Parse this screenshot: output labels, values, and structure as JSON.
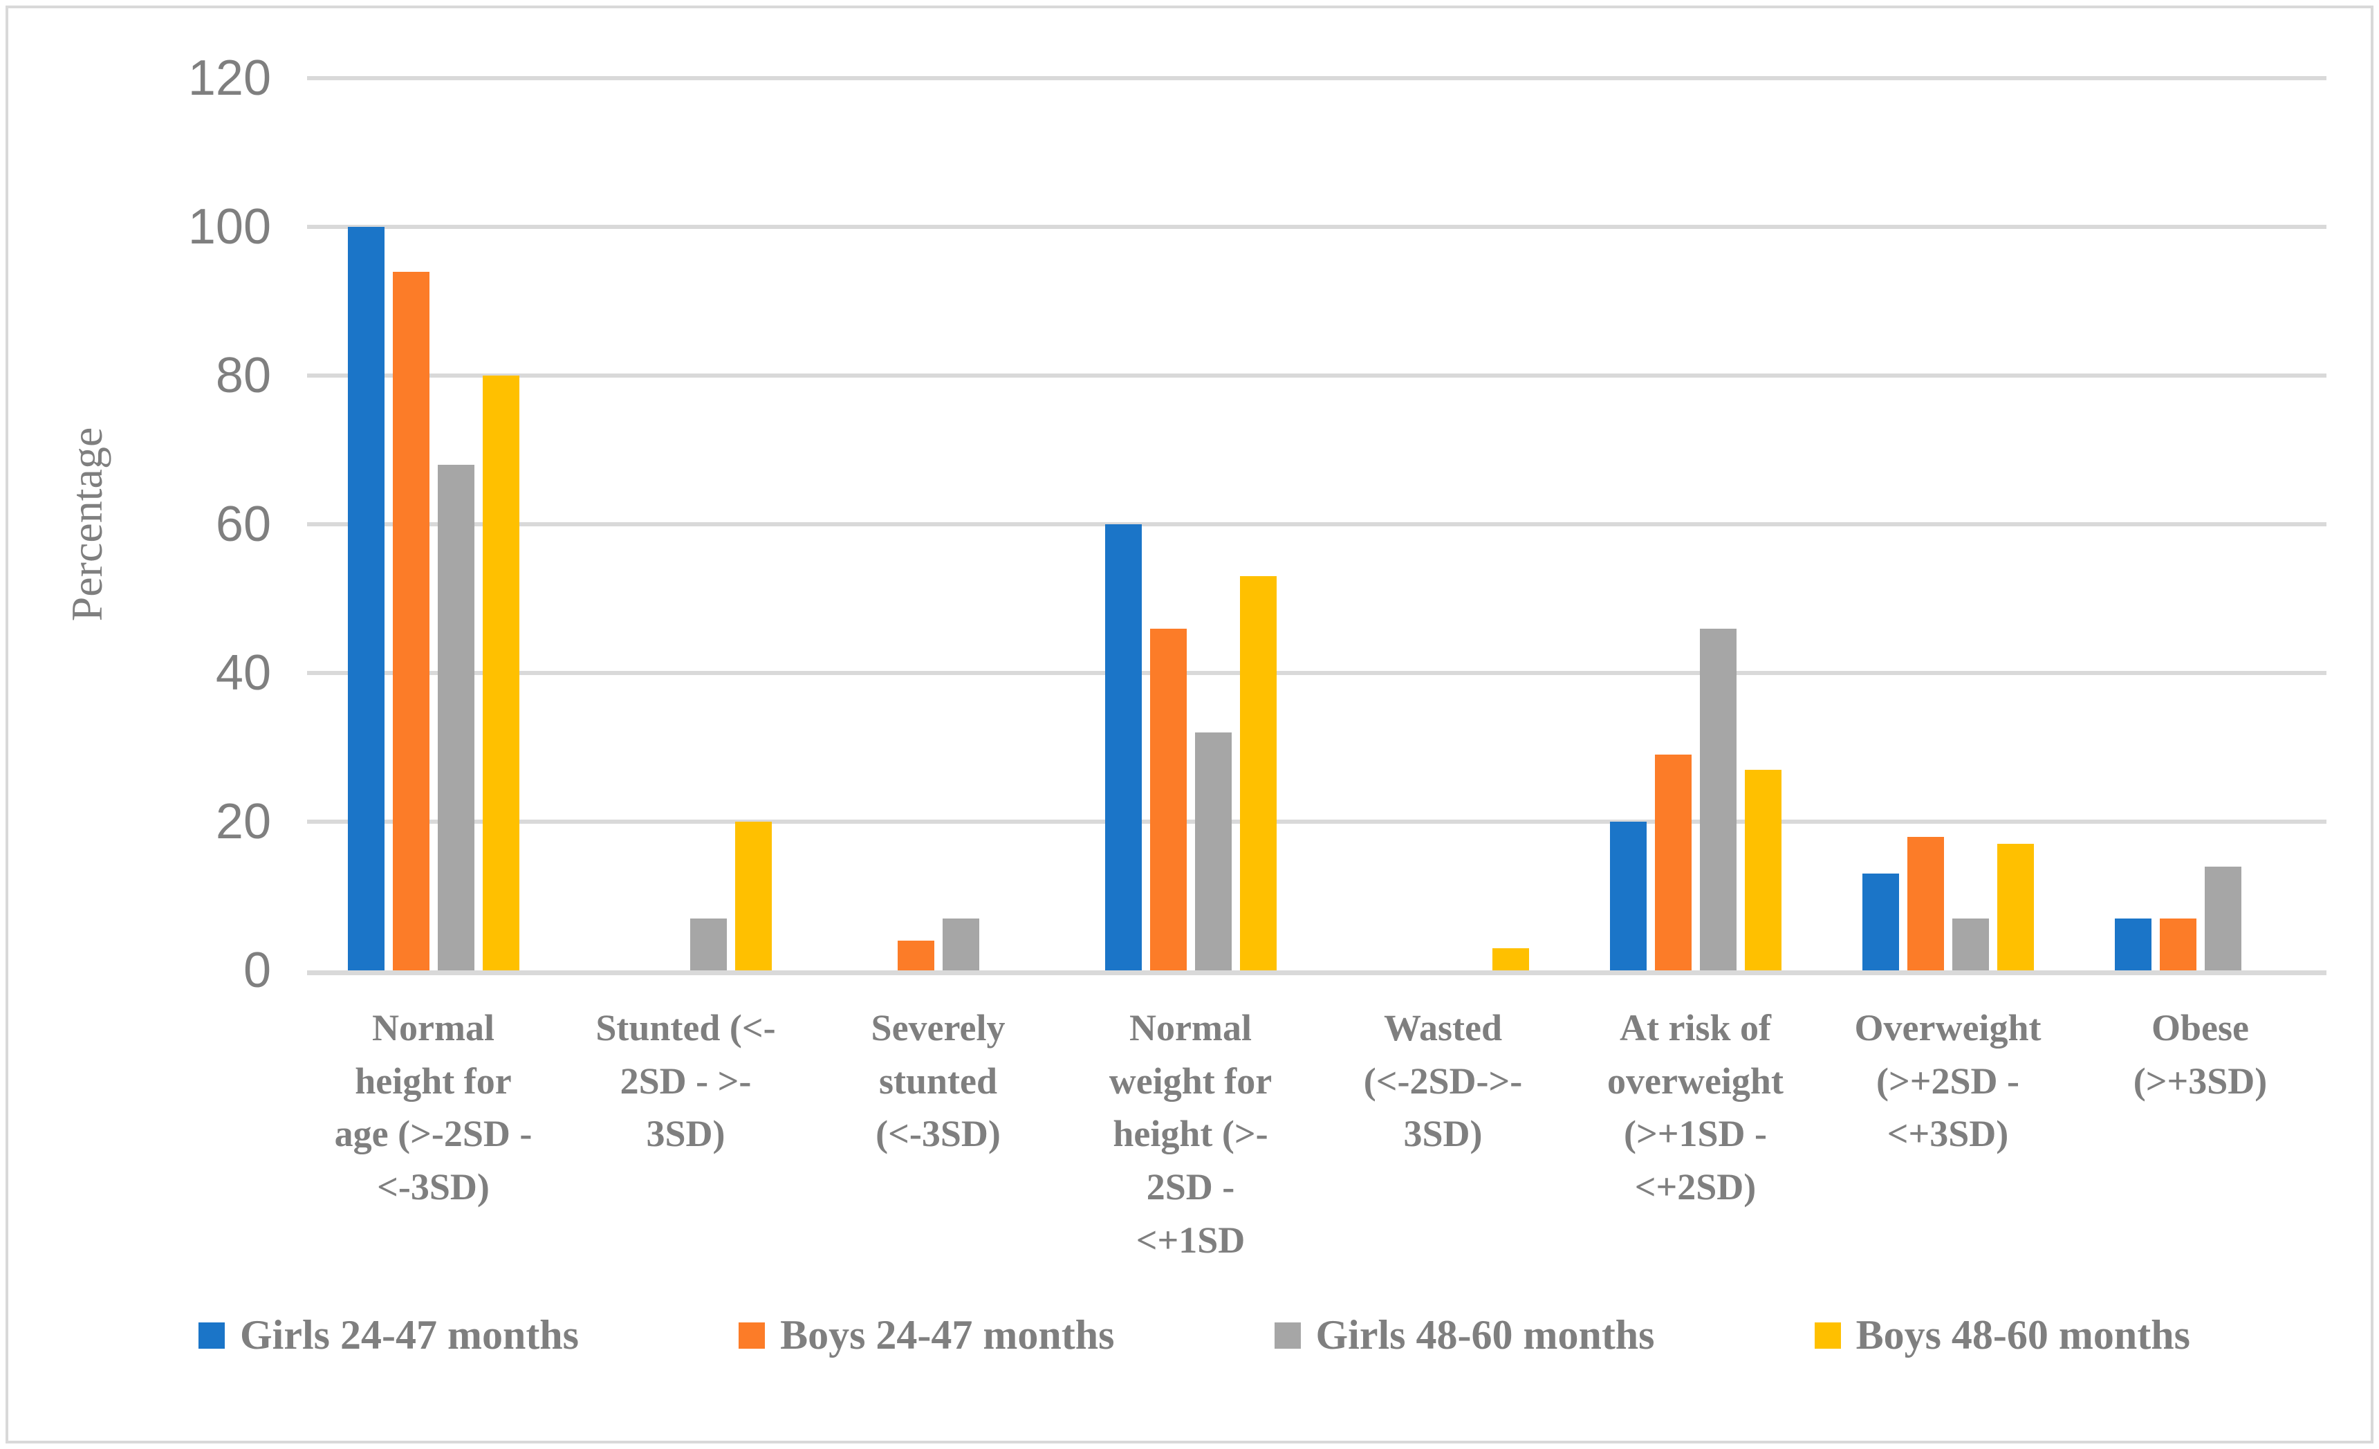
{
  "figure": {
    "background": "#FFFFFF",
    "border_color": "#D9D9D9",
    "grid_color": "#D9D9D9",
    "text_color": "#7F7F7F"
  },
  "chart_data": {
    "type": "bar",
    "title": "",
    "xlabel": "",
    "ylabel": "Percentage",
    "ylim": [
      0,
      120
    ],
    "yticks": [
      0,
      20,
      40,
      60,
      80,
      100,
      120
    ],
    "grid": true,
    "legend_position": "bottom",
    "categories": [
      "Normal height for age (>-2SD - <-3SD)",
      "Stunted (<-2SD - >-3SD)",
      "Severely stunted (<-3SD)",
      "Normal weight for height (>-2SD - <+1SD",
      "Wasted (<-2SD->-3SD)",
      "At risk of overweight (>+1SD - <+2SD)",
      "Overweight (>+2SD - <+3SD)",
      "Obese (>+3SD)"
    ],
    "category_lines": [
      [
        "Normal",
        "height for",
        "age (>-2SD -",
        "<-3SD)"
      ],
      [
        "Stunted (<-",
        "2SD - >-",
        "3SD)"
      ],
      [
        "Severely",
        "stunted",
        "(<-3SD)"
      ],
      [
        "Normal",
        "weight for",
        "height (>-",
        "2SD -",
        "<+1SD"
      ],
      [
        "Wasted",
        "(<-2SD->-",
        "3SD)"
      ],
      [
        "At risk of",
        "overweight",
        "(>+1SD -",
        "<+2SD)"
      ],
      [
        "Overweight",
        "(>+2SD -",
        "<+3SD)"
      ],
      [
        "Obese",
        "(>+3SD)"
      ]
    ],
    "series": [
      {
        "name": "Girls 24-47 months",
        "color": "#1B75C8",
        "values": [
          100,
          0,
          0,
          60,
          0,
          20,
          13,
          7
        ]
      },
      {
        "name": "Boys 24-47 months",
        "color": "#FC7C28",
        "values": [
          94,
          0,
          4,
          46,
          0,
          29,
          18,
          7
        ]
      },
      {
        "name": "Girls 48-60 months",
        "color": "#A6A6A6",
        "values": [
          68,
          7,
          7,
          32,
          0,
          46,
          7,
          14
        ]
      },
      {
        "name": "Boys 48-60 months",
        "color": "#FFC000",
        "values": [
          80,
          20,
          0,
          53,
          3,
          27,
          17,
          0
        ]
      }
    ]
  }
}
